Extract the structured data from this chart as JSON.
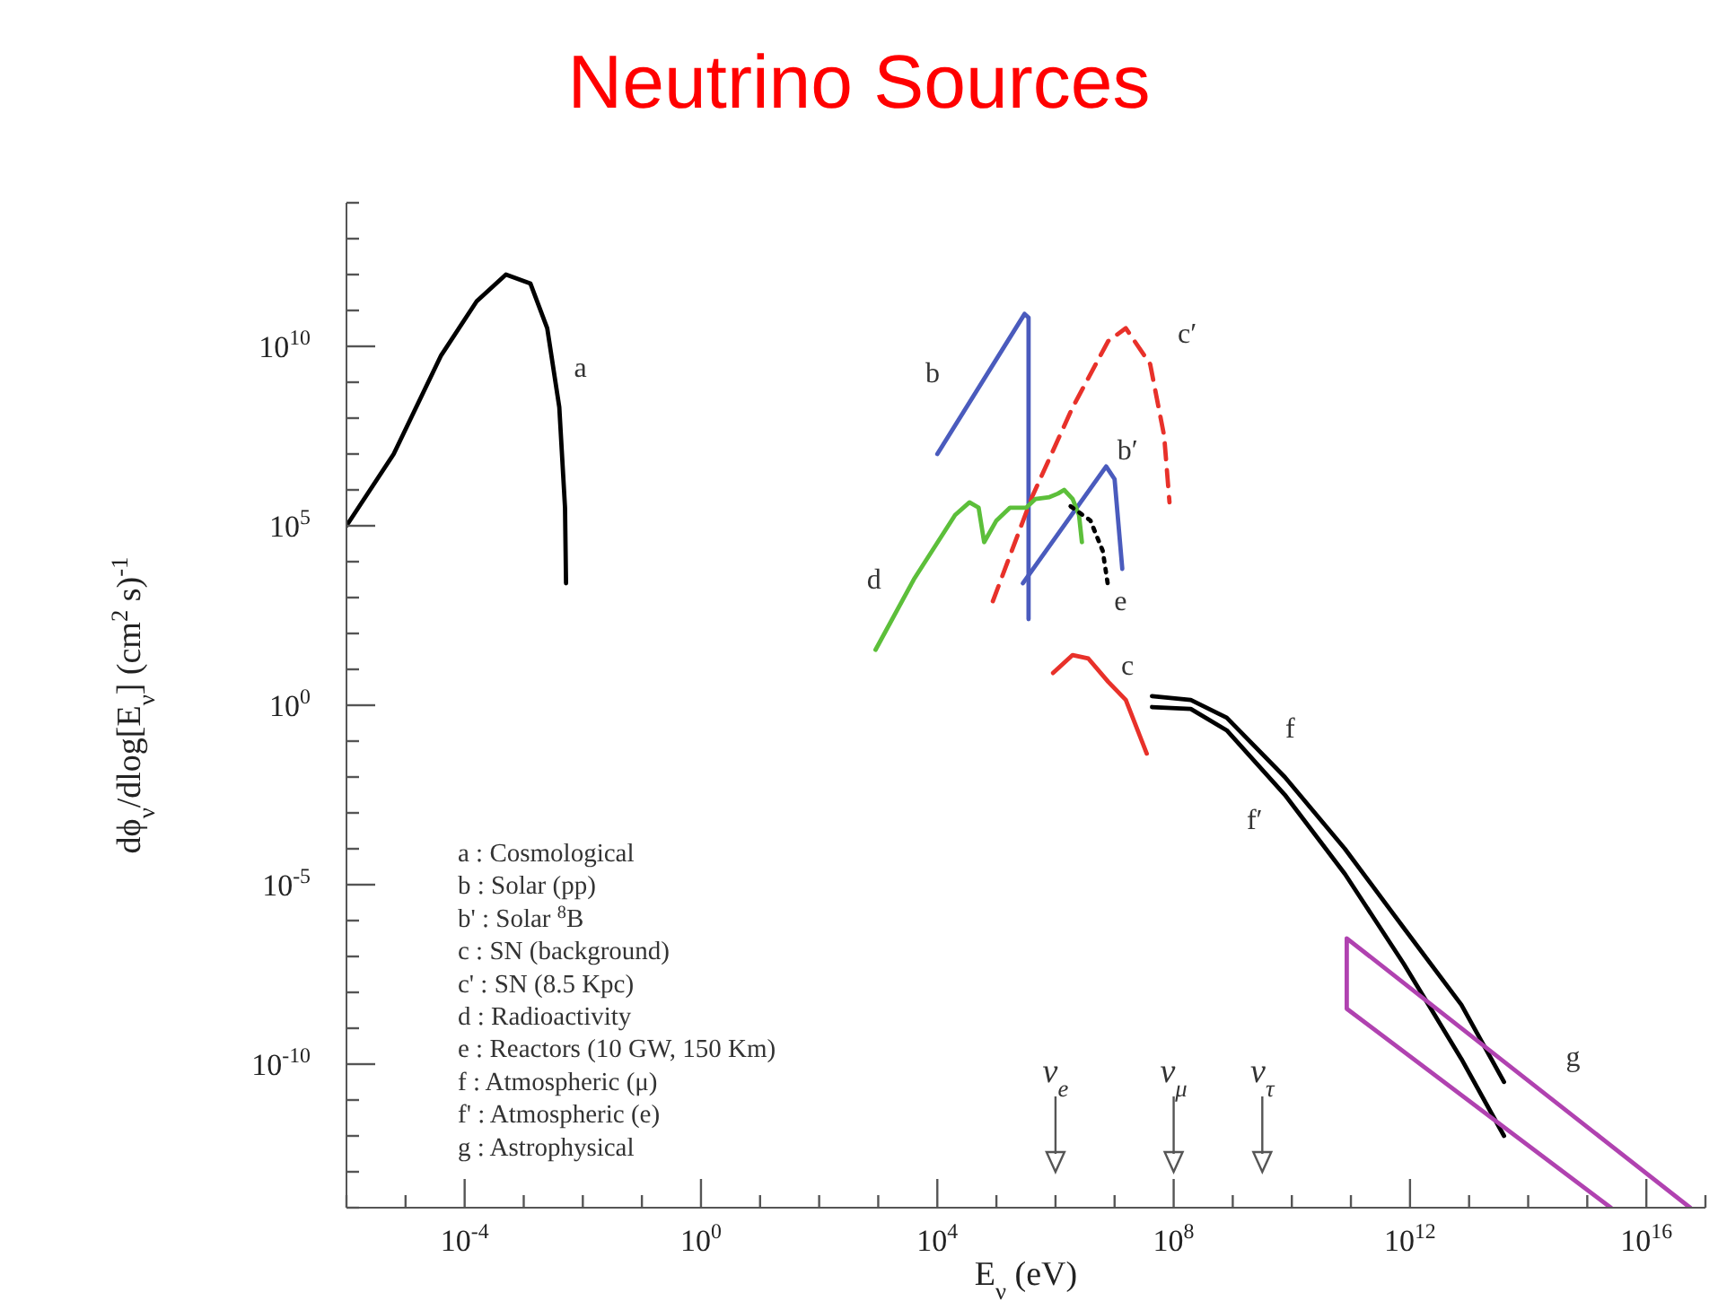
{
  "chart_data": {
    "type": "line",
    "title": "Neutrino Sources",
    "xlabel": "E$_{ν}$   (eV)",
    "ylabel": "dϕ$_{ν}$/dlog[E$_{ν}$]  (cm$^{2}$ s)$^{-1}$",
    "log": "xy",
    "marker": "none",
    "xlim": [
      1e-06,
      1e+17
    ],
    "ylim": [
      1e-14,
      100000000000000.0
    ],
    "xticks": [
      {
        "value": 1e-06,
        "label": null
      },
      {
        "value": 1e-05,
        "label": null
      },
      {
        "value": 0.0001,
        "label": "10$^{-4}$"
      },
      {
        "value": 0.001,
        "label": null
      },
      {
        "value": 0.01,
        "label": null
      },
      {
        "value": 0.1,
        "label": null
      },
      {
        "value": 1,
        "label": "10$^{0}$"
      },
      {
        "value": 10,
        "label": null
      },
      {
        "value": 100,
        "label": null
      },
      {
        "value": 1000,
        "label": null
      },
      {
        "value": 10000.0,
        "label": "10$^{4}$"
      },
      {
        "value": 100000.0,
        "label": null
      },
      {
        "value": 1000000.0,
        "label": null
      },
      {
        "value": 10000000.0,
        "label": null
      },
      {
        "value": 100000000.0,
        "label": "10$^{8}$"
      },
      {
        "value": 1000000000.0,
        "label": null
      },
      {
        "value": 10000000000.0,
        "label": null
      },
      {
        "value": 100000000000.0,
        "label": null
      },
      {
        "value": 1000000000000.0,
        "label": "10$^{12}$"
      },
      {
        "value": 10000000000000.0,
        "label": null
      },
      {
        "value": 100000000000000.0,
        "label": null
      },
      {
        "value": 1000000000000000.0,
        "label": null
      },
      {
        "value": 1e+16,
        "label": "10$^{16}$"
      },
      {
        "value": 1e+17,
        "label": null
      }
    ],
    "yticks": [
      {
        "value": 1e-14,
        "label": null
      },
      {
        "value": 1e-13,
        "label": null
      },
      {
        "value": 1e-12,
        "label": null
      },
      {
        "value": 1e-11,
        "label": null
      },
      {
        "value": 1e-10,
        "label": "10$^{-10}$"
      },
      {
        "value": 1e-09,
        "label": null
      },
      {
        "value": 1e-08,
        "label": null
      },
      {
        "value": 1e-07,
        "label": null
      },
      {
        "value": 1e-06,
        "label": null
      },
      {
        "value": 1e-05,
        "label": "10$^{-5}$"
      },
      {
        "value": 0.0001,
        "label": null
      },
      {
        "value": 0.001,
        "label": null
      },
      {
        "value": 0.01,
        "label": null
      },
      {
        "value": 0.1,
        "label": null
      },
      {
        "value": 1,
        "label": "10$^{0}$"
      },
      {
        "value": 10,
        "label": null
      },
      {
        "value": 100,
        "label": null
      },
      {
        "value": 1000,
        "label": null
      },
      {
        "value": 10000.0,
        "label": null
      },
      {
        "value": 100000.0,
        "label": "10$^{5}$"
      },
      {
        "value": 1000000.0,
        "label": null
      },
      {
        "value": 10000000.0,
        "label": null
      },
      {
        "value": 100000000.0,
        "label": null
      },
      {
        "value": 1000000000.0,
        "label": null
      },
      {
        "value": 10000000000.0,
        "label": "10$^{10}$"
      },
      {
        "value": 100000000000.0,
        "label": null
      },
      {
        "value": 1000000000000.0,
        "label": null
      },
      {
        "value": 10000000000000.0,
        "label": null
      },
      {
        "value": 100000000000000.0,
        "label": null
      }
    ],
    "series": [
      {
        "name": "a",
        "color": "#000000",
        "x": [
          1e-06,
          6.3e-06,
          4e-05,
          0.00016,
          0.0005,
          0.0013,
          0.0025,
          0.004,
          0.005,
          0.0052
        ],
        "values": [
          100000.0,
          10000000.0,
          5600000000.0,
          180000000000.0,
          1000000000000.0,
          560000000000.0,
          32000000000.0,
          200000000.0,
          320000.0,
          2500.0
        ]
      },
      {
        "name": "b",
        "color": "#4a5bbd",
        "x": [
          10000.0,
          300000.0,
          350000.0,
          350000.0
        ],
        "values": [
          10000000.0,
          80000000000.0,
          63000000000.0,
          250
        ]
      },
      {
        "name": "b′",
        "color": "#4a5bbd",
        "x": [
          280000.0,
          7200000.0,
          10000000.0,
          13500000.0
        ],
        "values": [
          2500,
          4500000.0,
          2000000.0,
          6300
        ]
      },
      {
        "name": "c",
        "color": "#e8312a",
        "x": [
          910000.0,
          1950000.0,
          3600000.0,
          7800000.0,
          15500000.0,
          35000000.0
        ],
        "values": [
          7.9,
          25,
          20,
          4.5,
          1.4,
          0.045
        ]
      },
      {
        "name": "c′",
        "color": "#e8312a",
        "line_style": "dashed",
        "x": [
          87000.0,
          400000.0,
          1950000.0,
          7800000.0,
          15500000.0,
          40000000.0,
          69000000.0,
          85000000.0
        ],
        "values": [
          790,
          630000.0,
          200000000.0,
          14000000000.0,
          32000000000.0,
          3200000000.0,
          32000000.0,
          450000.0
        ]
      },
      {
        "name": "d",
        "color": "#5cbf3a",
        "x": [
          900,
          4000,
          20000.0,
          35000.0,
          50000.0,
          62000.0,
          100000.0,
          170000.0,
          320000.0,
          460000.0,
          790000.0,
          1100000.0,
          1400000.0,
          1950000.0,
          2500000.0,
          2800000.0
        ],
        "values": [
          35,
          3200,
          200000.0,
          450000.0,
          320000.0,
          35000.0,
          140000.0,
          320000.0,
          320000.0,
          560000.0,
          630000.0,
          790000.0,
          1000000.0,
          560000.0,
          200000.0,
          35000.0
        ]
      },
      {
        "name": "e",
        "color": "#000000",
        "line_style": "dotted",
        "x": [
          1800000.0,
          3900000.0,
          6300000.0,
          7800000.0
        ],
        "values": [
          350000.0,
          140000.0,
          20000.0,
          2000
        ]
      },
      {
        "name": "f",
        "color": "#000000",
        "x": [
          43000000.0,
          195000000.0,
          790000000.0,
          7600000000.0,
          79000000000.0,
          780000000000.0,
          7400000000000.0,
          39000000000000.0
        ],
        "values": [
          1.8,
          1.4,
          0.45,
          0.01,
          0.0001,
          6.3e-07,
          4.5e-09,
          3.2e-11
        ]
      },
      {
        "name": "f′",
        "color": "#000000",
        "x": [
          43000000.0,
          195000000.0,
          790000000.0,
          7600000000.0,
          79000000000.0,
          780000000000.0,
          7400000000000.0,
          39000000000000.0
        ],
        "values": [
          0.89,
          0.79,
          0.2,
          0.0032,
          2e-05,
          6.3e-08,
          1.4e-10,
          1e-12
        ]
      },
      {
        "name": "g",
        "color": "#b042b0",
        "x": [
          2500000000000000.0,
          85000000000.0,
          85000000000.0,
          5.5e+16
        ],
        "values": [
          1e-14,
          3.5e-09,
          3.2e-07,
          1e-14
        ]
      }
    ],
    "annotations": [
      "a : Cosmological",
      "b : Solar (pp)",
      "b' : Solar $^{8}$B",
      "c : SN (background)",
      "c' : SN (8.5 Kpc)",
      "d : Radioactivity",
      "e : Reactors (10 GW, 150 Km)",
      "f : Atmospheric (μ)",
      "f' : Atmospheric (e)",
      "g : Astrophysical",
      "ν$_{e}$",
      "ν$_{μ}$",
      "ν$_{τ}$"
    ]
  }
}
